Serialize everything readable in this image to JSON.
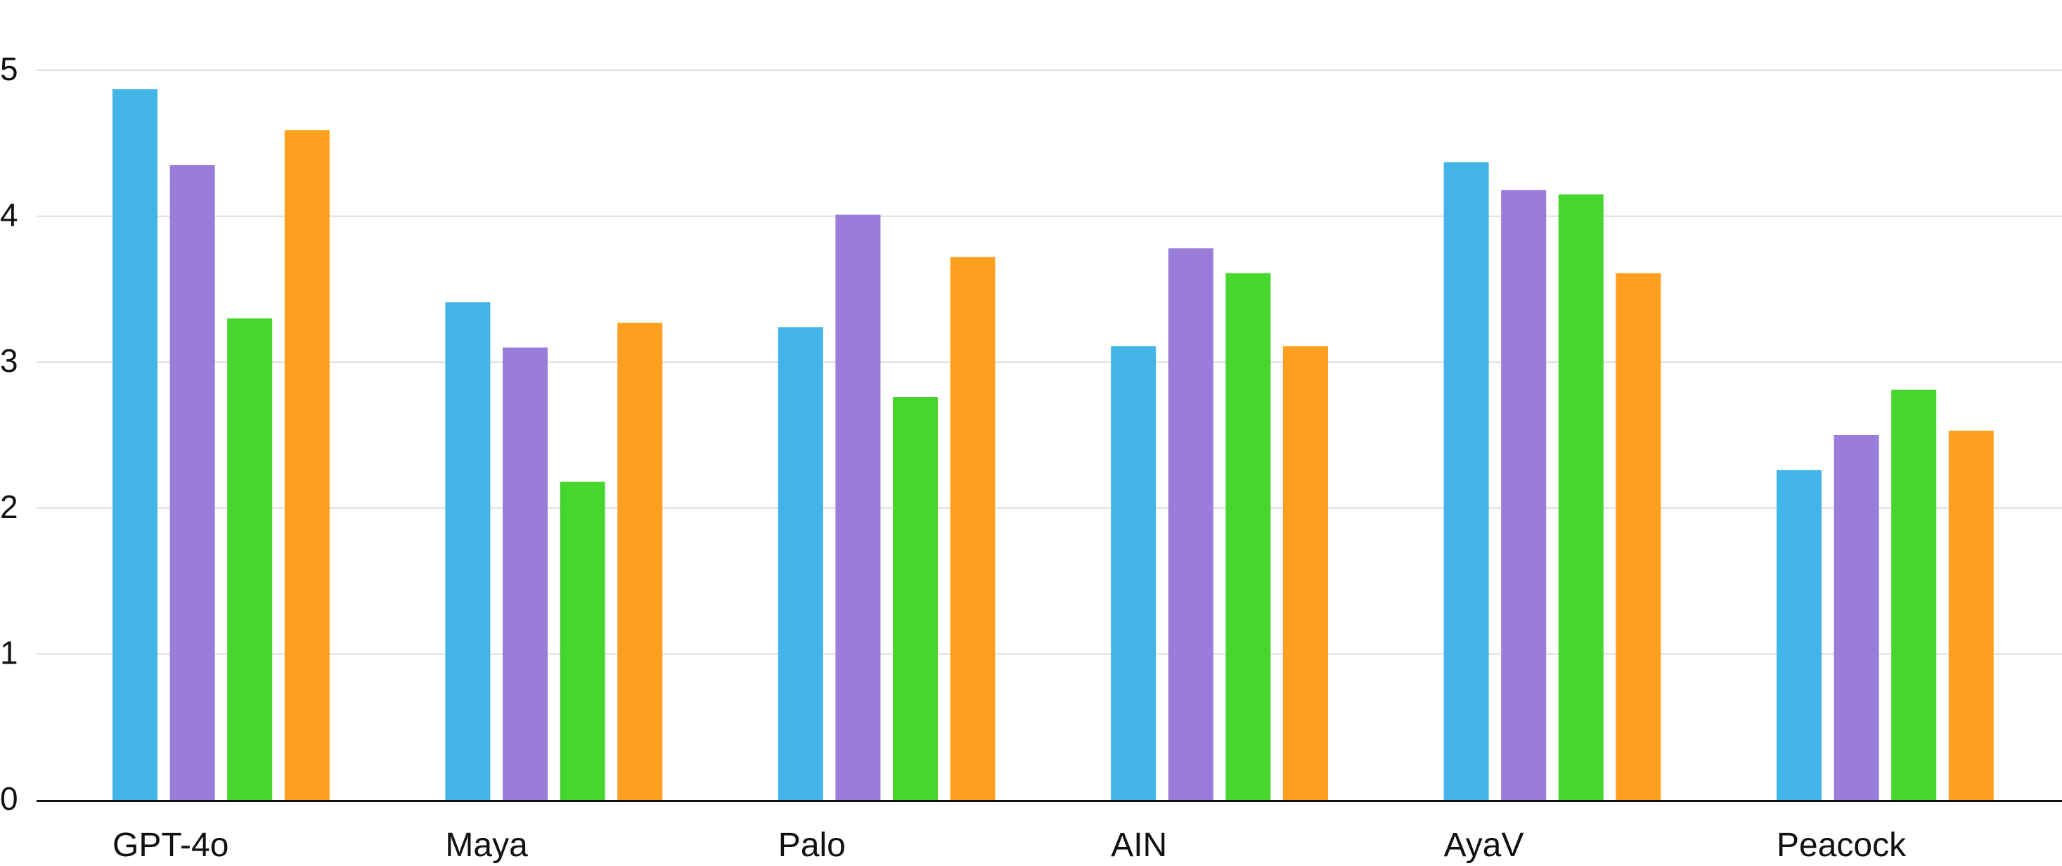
{
  "chart_data": {
    "type": "bar",
    "title": "",
    "xlabel": "",
    "ylabel": "",
    "ylim": [
      0,
      5
    ],
    "yticks": [
      0,
      1,
      2,
      3,
      4,
      5
    ],
    "grid": true,
    "legend": "none",
    "categories": [
      "GPT-4o",
      "Maya",
      "Palo",
      "AIN",
      "AyaV",
      "Peacock"
    ],
    "series": [
      {
        "color": "#42b4e6",
        "values": [
          4.87,
          3.41,
          3.24,
          3.11,
          4.37,
          2.26
        ]
      },
      {
        "color": "#9a7cdb",
        "values": [
          4.35,
          3.1,
          4.01,
          3.78,
          4.18,
          2.5
        ]
      },
      {
        "color": "#47d62e",
        "values": [
          3.3,
          2.18,
          2.76,
          3.61,
          4.15,
          2.81
        ]
      },
      {
        "color": "#ff9f1f",
        "values": [
          4.59,
          3.27,
          3.72,
          3.11,
          3.61,
          2.53
        ]
      }
    ]
  }
}
